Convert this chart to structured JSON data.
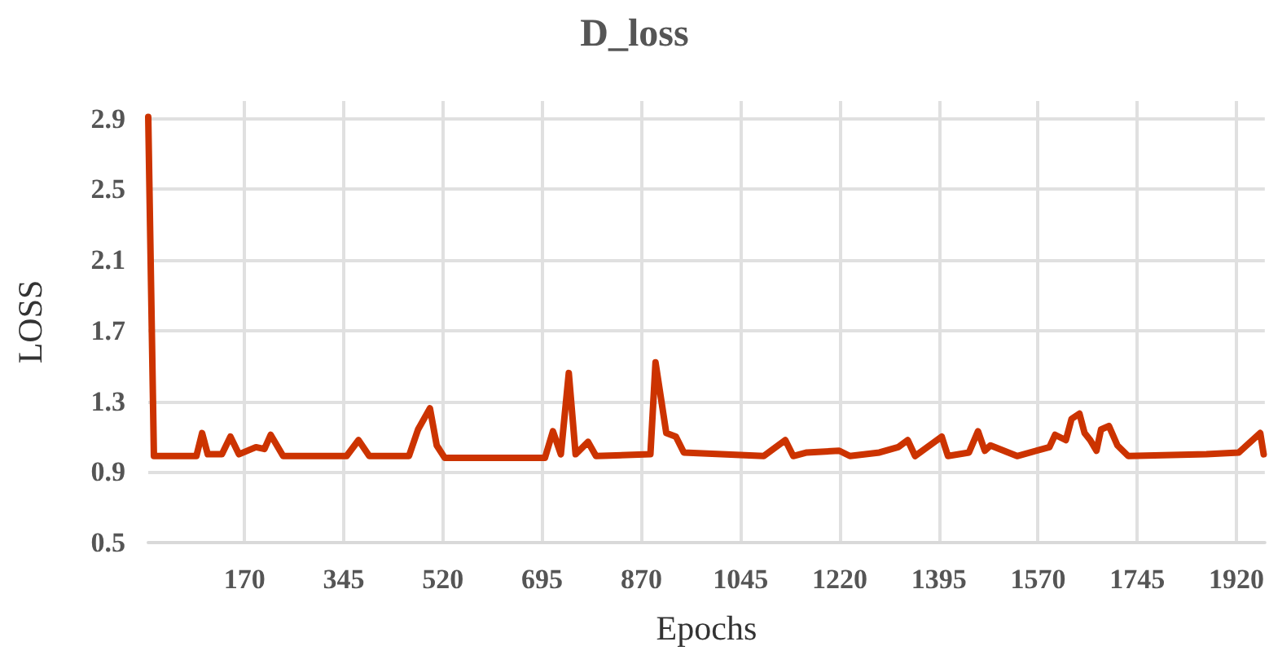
{
  "chart_data": {
    "type": "line",
    "title": "D_loss",
    "xlabel": "Epochs",
    "ylabel": "LOSS",
    "x": [
      0,
      10,
      85,
      95,
      105,
      130,
      145,
      160,
      190,
      205,
      216,
      238,
      350,
      371,
      390,
      460,
      476,
      497,
      509,
      523,
      700,
      714,
      728,
      742,
      754,
      776,
      790,
      886,
      895,
      914,
      931,
      945,
      1086,
      1124,
      1138,
      1162,
      1219,
      1238,
      1290,
      1323,
      1340,
      1353,
      1400,
      1411,
      1448,
      1464,
      1476,
      1486,
      1533,
      1590,
      1600,
      1619,
      1629,
      1643,
      1652,
      1662,
      1673,
      1681,
      1695,
      1710,
      1729,
      1867,
      1924,
      1962,
      1968
    ],
    "series": [
      {
        "color": "#cc3300",
        "values": [
          2.91,
          0.99,
          0.99,
          1.12,
          1.0,
          1.0,
          1.1,
          1.0,
          1.04,
          1.03,
          1.11,
          0.99,
          0.99,
          1.08,
          0.99,
          0.99,
          1.14,
          1.26,
          1.05,
          0.98,
          0.98,
          1.13,
          1.0,
          1.46,
          1.0,
          1.07,
          0.99,
          1.0,
          1.52,
          1.12,
          1.1,
          1.01,
          0.99,
          1.08,
          0.99,
          1.01,
          1.02,
          0.99,
          1.01,
          1.04,
          1.08,
          0.99,
          1.1,
          0.99,
          1.01,
          1.13,
          1.02,
          1.05,
          0.99,
          1.04,
          1.11,
          1.08,
          1.2,
          1.23,
          1.12,
          1.08,
          1.02,
          1.14,
          1.16,
          1.05,
          0.99,
          1.0,
          1.01,
          1.12,
          1.0
        ]
      }
    ],
    "xlim": [
      0,
      1970
    ],
    "xticks": [
      170,
      345,
      520,
      695,
      870,
      1045,
      1220,
      1395,
      1570,
      1745,
      1920
    ],
    "ylim": [
      0.5,
      3.0
    ],
    "yticks": [
      0.5,
      0.9,
      1.3,
      1.7,
      2.1,
      2.5,
      2.9
    ],
    "grid": true,
    "marker": "none",
    "line_style": "solid"
  }
}
